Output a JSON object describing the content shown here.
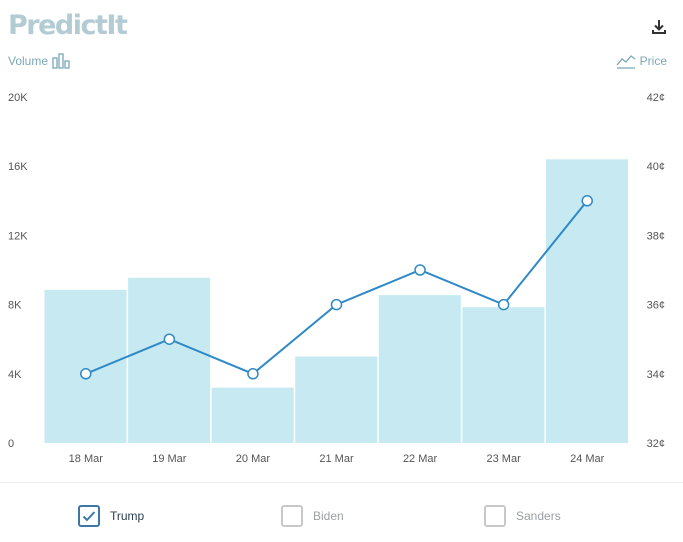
{
  "brand": {
    "logo_text": "PredictIt"
  },
  "header": {
    "volume_label": "Volume",
    "price_label": "Price"
  },
  "colors": {
    "bar": "#c7eaf2",
    "line": "#2f89c6",
    "accent": "#3d77a8",
    "logo": "#b3cbd2"
  },
  "icons": {
    "download": "download-icon",
    "volume": "bar-chart-icon",
    "price": "line-chart-icon",
    "check": "check-icon"
  },
  "chart_data": {
    "type": "bar",
    "categories": [
      "18 Mar",
      "19 Mar",
      "20 Mar",
      "21 Mar",
      "22 Mar",
      "23 Mar",
      "24 Mar"
    ],
    "series": [
      {
        "name": "Volume",
        "type": "bar",
        "axis": "left",
        "values": [
          8850,
          9550,
          3200,
          5000,
          8550,
          7850,
          16400
        ]
      },
      {
        "name": "Price",
        "type": "line",
        "axis": "right",
        "values": [
          34,
          35,
          34,
          36,
          37,
          36,
          39
        ]
      }
    ],
    "left_axis": {
      "ticks": [
        "0",
        "4K",
        "8K",
        "12K",
        "16K",
        "20K"
      ],
      "ylim": [
        0,
        20000
      ]
    },
    "right_axis": {
      "ticks": [
        "32¢",
        "34¢",
        "36¢",
        "38¢",
        "40¢",
        "42¢"
      ],
      "ylim": [
        32,
        42
      ]
    },
    "grid": false,
    "legend": "bottom"
  },
  "candidates": [
    {
      "label": "Trump",
      "checked": true
    },
    {
      "label": "Biden",
      "checked": false
    },
    {
      "label": "Sanders",
      "checked": false
    }
  ]
}
